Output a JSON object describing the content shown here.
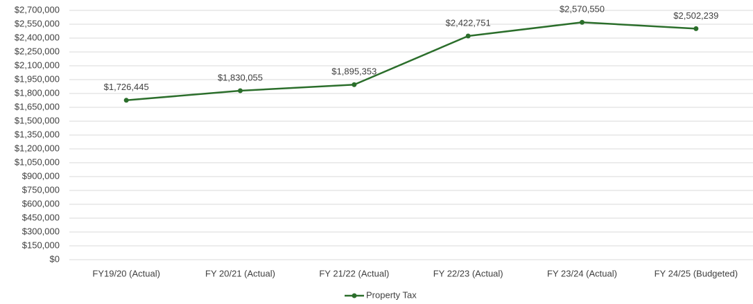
{
  "chart_data": {
    "type": "line",
    "categories": [
      "FY19/20 (Actual)",
      "FY 20/21 (Actual)",
      "FY 21/22 (Actual)",
      "FY 22/23 (Actual)",
      "FY 23/24 (Actual)",
      "FY 24/25 (Budgeted)"
    ],
    "series": [
      {
        "name": "Property Tax",
        "color": "#2b6e2b",
        "values": [
          1726445,
          1830055,
          1895353,
          2422751,
          2570550,
          2502239
        ],
        "value_labels": [
          "$1,726,445",
          "$1,830,055",
          "$1,895,353",
          "$2,422,751",
          "$2,570,550",
          "$2,502,239"
        ]
      }
    ],
    "ylim": [
      0,
      2700000
    ],
    "yticks": [
      {
        "value": 0,
        "label": "$0"
      },
      {
        "value": 150000,
        "label": "$150,000"
      },
      {
        "value": 300000,
        "label": "$300,000"
      },
      {
        "value": 450000,
        "label": "$450,000"
      },
      {
        "value": 600000,
        "label": "$600,000"
      },
      {
        "value": 750000,
        "label": "$750,000"
      },
      {
        "value": 900000,
        "label": "$900,000"
      },
      {
        "value": 1050000,
        "label": "$1,050,000"
      },
      {
        "value": 1200000,
        "label": "$1,200,000"
      },
      {
        "value": 1350000,
        "label": "$1,350,000"
      },
      {
        "value": 1500000,
        "label": "$1,500,000"
      },
      {
        "value": 1650000,
        "label": "$1,650,000"
      },
      {
        "value": 1800000,
        "label": "$1,800,000"
      },
      {
        "value": 1950000,
        "label": "$1,950,000"
      },
      {
        "value": 2100000,
        "label": "$2,100,000"
      },
      {
        "value": 2250000,
        "label": "$2,250,000"
      },
      {
        "value": 2400000,
        "label": "$2,400,000"
      },
      {
        "value": 2550000,
        "label": "$2,550,000"
      },
      {
        "value": 2700000,
        "label": "$2,700,000"
      }
    ],
    "grid": true,
    "legend": "bottom"
  }
}
